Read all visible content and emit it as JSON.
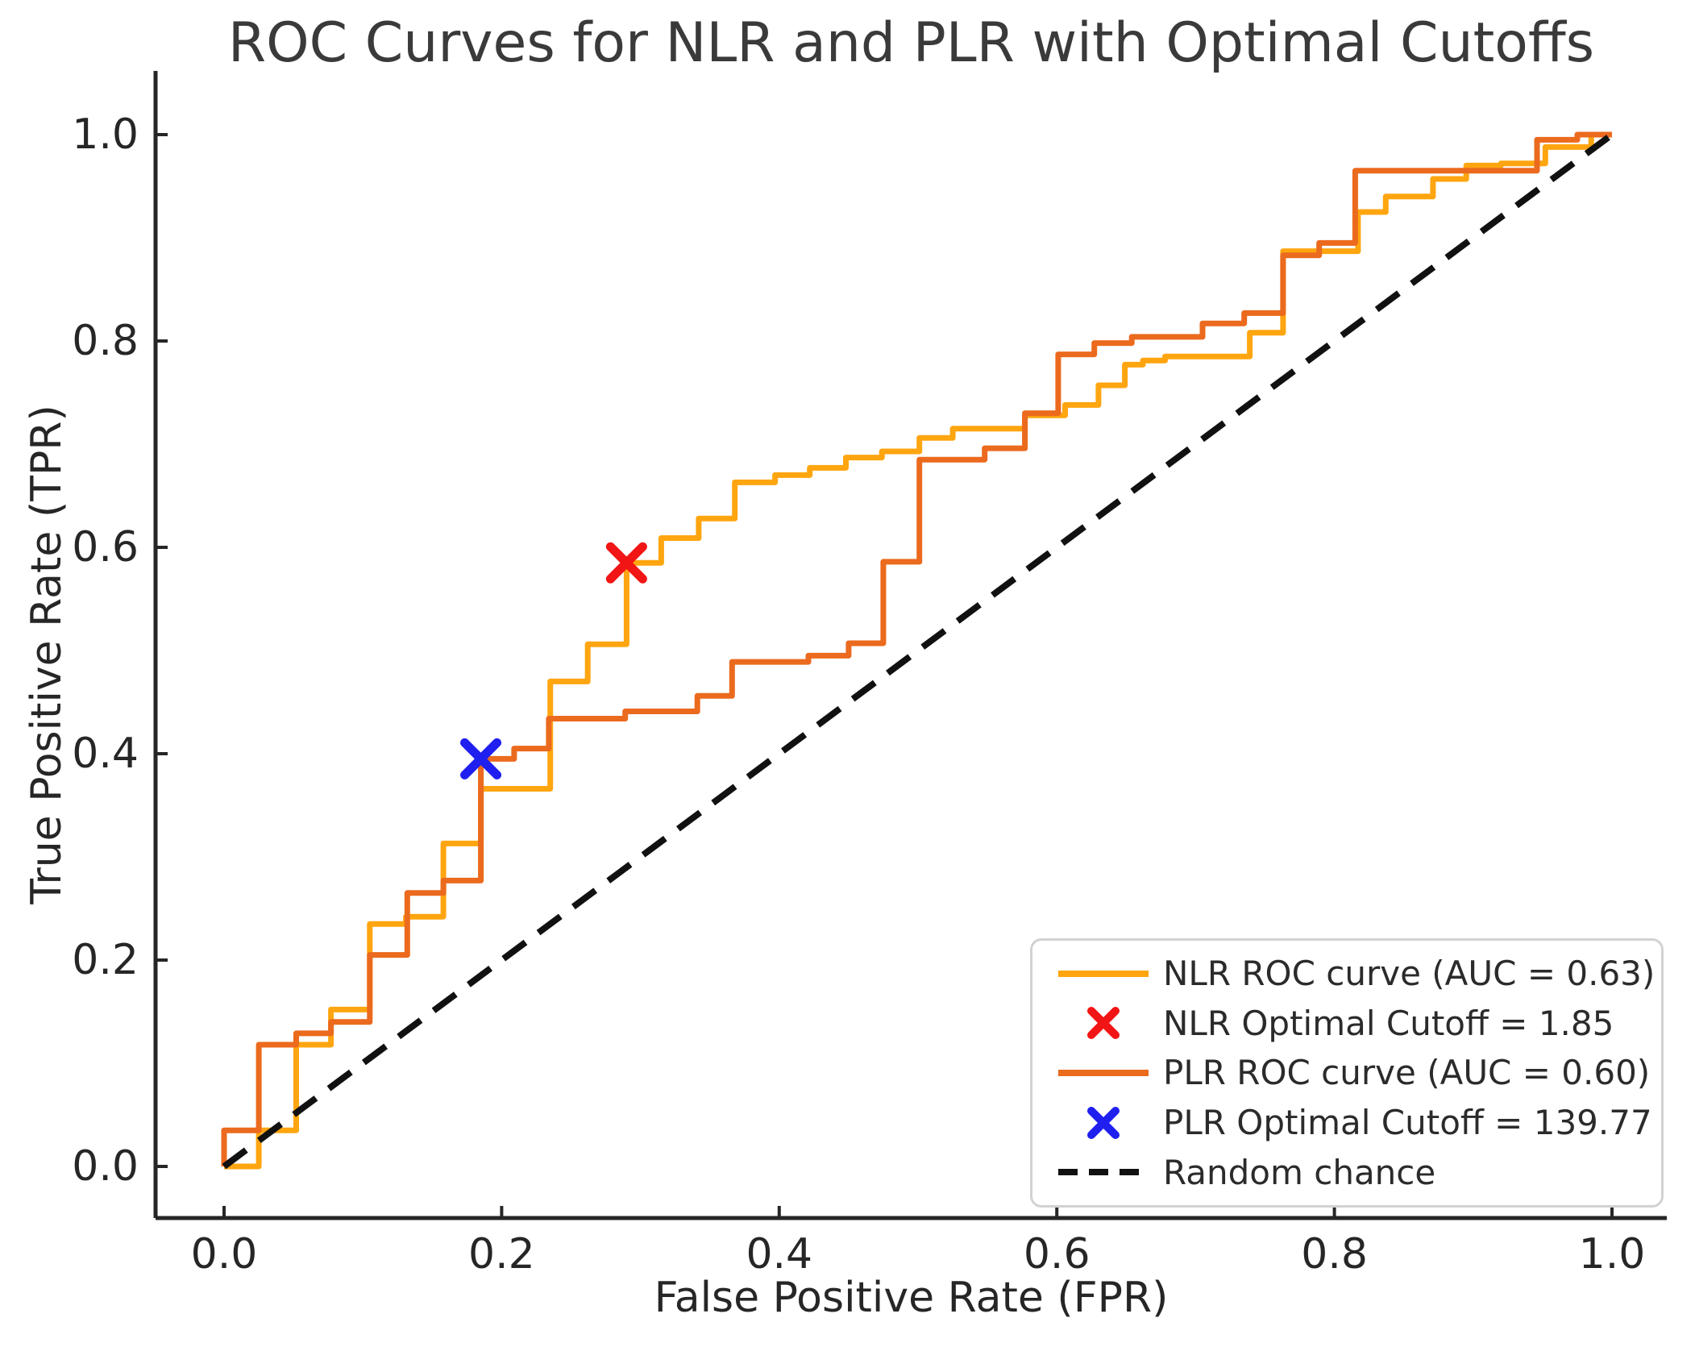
{
  "title": "ROC Curves for NLR and PLR with Optimal Cutoffs",
  "colors": {
    "nlr_curve": "#FFA510",
    "plr_curve": "#EB6A1E",
    "nlr_marker": "#F21515",
    "plr_marker": "#1F1FF0",
    "diagonal": "#111111",
    "axis": "#262626",
    "text": "#262626",
    "legend_border": "#d2d2d2"
  },
  "legend": {
    "items": [
      {
        "type": "line",
        "color": "#FFA510",
        "label": "NLR ROC curve (AUC = 0.63)"
      },
      {
        "type": "marker",
        "color": "#F21515",
        "label": "NLR Optimal Cutoff = 1.85"
      },
      {
        "type": "line",
        "color": "#EB6A1E",
        "label": "PLR ROC curve (AUC = 0.60)"
      },
      {
        "type": "marker",
        "color": "#1F1FF0",
        "label": "PLR Optimal Cutoff = 139.77"
      },
      {
        "type": "dash",
        "color": "#111111",
        "label": "Random chance"
      }
    ]
  },
  "chart_data": {
    "type": "line",
    "title": "ROC Curves for NLR and PLR with Optimal Cutoffs",
    "xlabel": "False Positive Rate (FPR)",
    "ylabel": "True Positive Rate (TPR)",
    "xlim": [
      0,
      1
    ],
    "ylim": [
      0,
      1
    ],
    "x_ticks": [
      {
        "v": 0.0,
        "label": "0.0"
      },
      {
        "v": 0.2,
        "label": "0.2"
      },
      {
        "v": 0.4,
        "label": "0.4"
      },
      {
        "v": 0.6,
        "label": "0.6"
      },
      {
        "v": 0.8,
        "label": "0.8"
      },
      {
        "v": 1.0,
        "label": "1.0"
      }
    ],
    "y_ticks": [
      {
        "v": 0.0,
        "label": "0.0"
      },
      {
        "v": 0.2,
        "label": "0.2"
      },
      {
        "v": 0.4,
        "label": "0.4"
      },
      {
        "v": 0.6,
        "label": "0.6"
      },
      {
        "v": 0.8,
        "label": "0.8"
      },
      {
        "v": 1.0,
        "label": "1.0"
      }
    ],
    "grid": false,
    "legend_position": "lower right",
    "series": [
      {
        "name": "NLR ROC curve (AUC = 0.63)",
        "auc": 0.63,
        "style": "step-solid",
        "points": [
          [
            0,
            0
          ],
          [
            0.025,
            0
          ],
          [
            0.025,
            0.035
          ],
          [
            0.052,
            0.035
          ],
          [
            0.052,
            0.118
          ],
          [
            0.077,
            0.118
          ],
          [
            0.077,
            0.152
          ],
          [
            0.105,
            0.152
          ],
          [
            0.105,
            0.235
          ],
          [
            0.131,
            0.235
          ],
          [
            0.131,
            0.242
          ],
          [
            0.158,
            0.242
          ],
          [
            0.158,
            0.313
          ],
          [
            0.185,
            0.313
          ],
          [
            0.185,
            0.366
          ],
          [
            0.235,
            0.366
          ],
          [
            0.235,
            0.47
          ],
          [
            0.262,
            0.47
          ],
          [
            0.262,
            0.506
          ],
          [
            0.29,
            0.506
          ],
          [
            0.29,
            0.585
          ],
          [
            0.315,
            0.585
          ],
          [
            0.315,
            0.609
          ],
          [
            0.342,
            0.609
          ],
          [
            0.342,
            0.628
          ],
          [
            0.368,
            0.628
          ],
          [
            0.368,
            0.663
          ],
          [
            0.397,
            0.663
          ],
          [
            0.397,
            0.67
          ],
          [
            0.422,
            0.67
          ],
          [
            0.422,
            0.677
          ],
          [
            0.448,
            0.677
          ],
          [
            0.448,
            0.687
          ],
          [
            0.474,
            0.687
          ],
          [
            0.474,
            0.693
          ],
          [
            0.501,
            0.693
          ],
          [
            0.501,
            0.706
          ],
          [
            0.525,
            0.706
          ],
          [
            0.525,
            0.715
          ],
          [
            0.577,
            0.715
          ],
          [
            0.577,
            0.728
          ],
          [
            0.606,
            0.728
          ],
          [
            0.606,
            0.738
          ],
          [
            0.63,
            0.738
          ],
          [
            0.63,
            0.757
          ],
          [
            0.649,
            0.757
          ],
          [
            0.649,
            0.777
          ],
          [
            0.662,
            0.777
          ],
          [
            0.662,
            0.781
          ],
          [
            0.678,
            0.781
          ],
          [
            0.678,
            0.785
          ],
          [
            0.739,
            0.785
          ],
          [
            0.739,
            0.808
          ],
          [
            0.763,
            0.808
          ],
          [
            0.763,
            0.887
          ],
          [
            0.817,
            0.887
          ],
          [
            0.817,
            0.925
          ],
          [
            0.837,
            0.925
          ],
          [
            0.837,
            0.94
          ],
          [
            0.871,
            0.94
          ],
          [
            0.871,
            0.957
          ],
          [
            0.895,
            0.957
          ],
          [
            0.895,
            0.97
          ],
          [
            0.92,
            0.97
          ],
          [
            0.92,
            0.972
          ],
          [
            0.952,
            0.972
          ],
          [
            0.952,
            0.988
          ],
          [
            0.985,
            0.988
          ],
          [
            0.985,
            1.0
          ],
          [
            1.0,
            1.0
          ]
        ]
      },
      {
        "name": "PLR ROC curve (AUC = 0.60)",
        "auc": 0.6,
        "style": "step-solid",
        "points": [
          [
            0,
            0
          ],
          [
            0,
            0.035
          ],
          [
            0.025,
            0.035
          ],
          [
            0.025,
            0.118
          ],
          [
            0.052,
            0.118
          ],
          [
            0.052,
            0.129
          ],
          [
            0.077,
            0.129
          ],
          [
            0.077,
            0.14
          ],
          [
            0.105,
            0.14
          ],
          [
            0.105,
            0.205
          ],
          [
            0.132,
            0.205
          ],
          [
            0.132,
            0.265
          ],
          [
            0.158,
            0.265
          ],
          [
            0.158,
            0.277
          ],
          [
            0.185,
            0.277
          ],
          [
            0.185,
            0.395
          ],
          [
            0.209,
            0.395
          ],
          [
            0.209,
            0.405
          ],
          [
            0.234,
            0.405
          ],
          [
            0.234,
            0.434
          ],
          [
            0.289,
            0.434
          ],
          [
            0.289,
            0.441
          ],
          [
            0.341,
            0.441
          ],
          [
            0.341,
            0.456
          ],
          [
            0.366,
            0.456
          ],
          [
            0.366,
            0.489
          ],
          [
            0.421,
            0.489
          ],
          [
            0.421,
            0.495
          ],
          [
            0.45,
            0.495
          ],
          [
            0.45,
            0.507
          ],
          [
            0.475,
            0.507
          ],
          [
            0.475,
            0.586
          ],
          [
            0.501,
            0.586
          ],
          [
            0.501,
            0.685
          ],
          [
            0.548,
            0.685
          ],
          [
            0.548,
            0.696
          ],
          [
            0.577,
            0.696
          ],
          [
            0.577,
            0.73
          ],
          [
            0.601,
            0.73
          ],
          [
            0.601,
            0.787
          ],
          [
            0.627,
            0.787
          ],
          [
            0.627,
            0.798
          ],
          [
            0.654,
            0.798
          ],
          [
            0.654,
            0.804
          ],
          [
            0.705,
            0.804
          ],
          [
            0.705,
            0.817
          ],
          [
            0.735,
            0.817
          ],
          [
            0.735,
            0.827
          ],
          [
            0.763,
            0.827
          ],
          [
            0.763,
            0.883
          ],
          [
            0.789,
            0.883
          ],
          [
            0.789,
            0.895
          ],
          [
            0.815,
            0.895
          ],
          [
            0.815,
            0.965
          ],
          [
            0.919,
            0.965
          ],
          [
            0.946,
            0.965
          ],
          [
            0.946,
            0.995
          ],
          [
            0.975,
            0.995
          ],
          [
            0.975,
            1.0
          ],
          [
            1.0,
            1.0
          ]
        ]
      },
      {
        "name": "Random chance",
        "style": "dashed",
        "points": [
          [
            0,
            0
          ],
          [
            1,
            1
          ]
        ]
      }
    ],
    "markers": [
      {
        "name": "NLR Optimal Cutoff",
        "cutoff_value": 1.85,
        "x": 0.29,
        "y": 0.585,
        "color": "#F21515"
      },
      {
        "name": "PLR Optimal Cutoff",
        "cutoff_value": 139.77,
        "x": 0.185,
        "y": 0.395,
        "color": "#1F1FF0"
      }
    ]
  }
}
